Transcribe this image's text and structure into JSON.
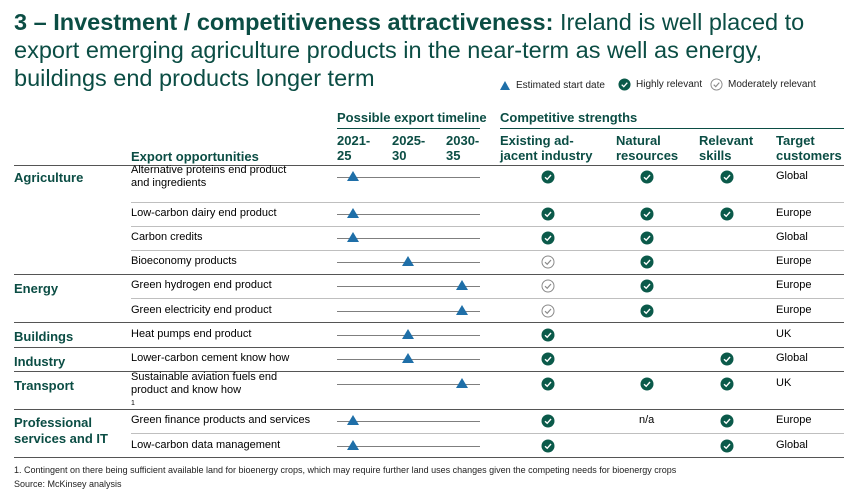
{
  "title": {
    "bold": "3 – Investment / competitiveness attractiveness:",
    "rest": " Ireland is well placed to export emerging agriculture products in the near-term as well as energy, buildings end products longer term"
  },
  "legend": {
    "estimated": "Estimated start date",
    "highly": "Highly relevant",
    "moderately": "Moderately relevant"
  },
  "headers": {
    "timeline_group": "Possible export timeline",
    "strengths_group": "Competitive strengths",
    "export_opps": "Export opportunities",
    "t1a": "2021-",
    "t1b": "25",
    "t2a": "2025-",
    "t2b": "30",
    "t3a": "2030-",
    "t3b": "35",
    "existing_a": "Existing ad-",
    "existing_b": "jacent industry",
    "natural_a": "Natural",
    "natural_b": "resources",
    "skills_a": "Relevant",
    "skills_b": "skills",
    "target_a": "Target",
    "target_b": "customers"
  },
  "categories": {
    "agriculture": "Agriculture",
    "energy": "Energy",
    "buildings": "Buildings",
    "industry": "Industry",
    "transport": "Transport",
    "professional_a": "Professional",
    "professional_b": "services and IT"
  },
  "rows": [
    {
      "l1": "Alternative proteins end product",
      "l2": "and ingredients",
      "existing": "high",
      "natural": "high",
      "skills": "high",
      "customer": "Global",
      "start": "2021-25"
    },
    {
      "l1": "Low-carbon dairy end product",
      "existing": "high",
      "natural": "high",
      "skills": "high",
      "customer": "Europe",
      "start": "2021-25"
    },
    {
      "l1": "Carbon credits",
      "existing": "high",
      "natural": "high",
      "skills": "",
      "customer": "Global",
      "start": "2021-25"
    },
    {
      "l1": "Bioeconomy products",
      "existing": "moderate",
      "natural": "high",
      "skills": "",
      "customer": "Europe",
      "start": "2025-30"
    },
    {
      "l1": "Green hydrogen end product",
      "existing": "moderate",
      "natural": "high",
      "skills": "",
      "customer": "Europe",
      "start": "2030-35"
    },
    {
      "l1": "Green electricity end product",
      "existing": "moderate",
      "natural": "high",
      "skills": "",
      "customer": "Europe",
      "start": "2030-35"
    },
    {
      "l1": "Heat pumps end product",
      "existing": "high",
      "natural": "",
      "skills": "",
      "customer": "UK",
      "start": "2025-30"
    },
    {
      "l1": "Lower-carbon cement know how",
      "existing": "high",
      "natural": "",
      "skills": "high",
      "customer": "Global",
      "start": "2025-30"
    },
    {
      "l1": "Sustainable aviation fuels end",
      "l2": "product and know how",
      "sup": "1",
      "existing": "high",
      "natural": "high",
      "skills": "high",
      "customer": "UK",
      "start": "2030-35"
    },
    {
      "l1": "Green finance products and services",
      "existing": "high",
      "natural_text": "n/a",
      "skills": "high",
      "customer": "Europe",
      "start": "2021-25"
    },
    {
      "l1": "Low-carbon data management",
      "existing": "high",
      "natural": "",
      "skills": "high",
      "customer": "Global",
      "start": "2021-25"
    }
  ],
  "footnote": "1.   Contingent on there being sufficient available land for bioenergy crops, which may require further land uses changes given the competing needs for bioenergy crops",
  "source": "Source: McKinsey analysis",
  "colors": {
    "brand": "#0b4d44",
    "triangle": "#1f6fa8",
    "check": "#0b5a4a"
  }
}
